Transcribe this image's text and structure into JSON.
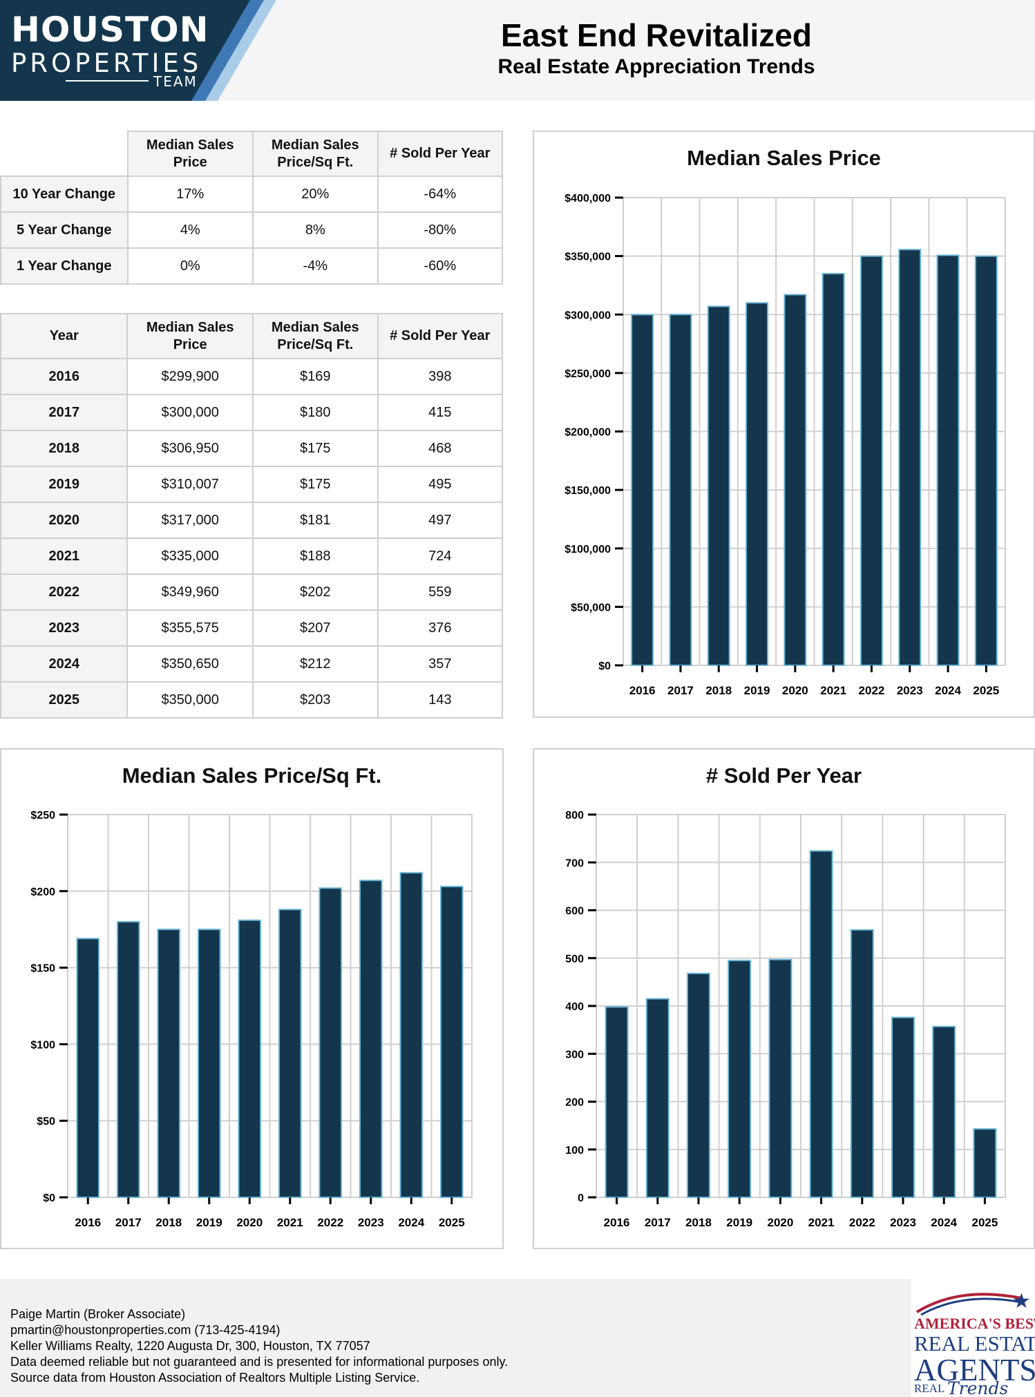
{
  "logo": {
    "line1": "HOUSTON",
    "line2": "PROPERTIES",
    "line3": "TEAM"
  },
  "header": {
    "title": "East End Revitalized",
    "subtitle": "Real Estate Appreciation Trends"
  },
  "change_table": {
    "headers": [
      "",
      "Median Sales Price",
      "Median Sales Price/Sq Ft.",
      "# Sold Per Year"
    ],
    "rows": [
      {
        "label": "10 Year Change",
        "price": "17%",
        "sqft": "20%",
        "sold": "-64%"
      },
      {
        "label": "5 Year Change",
        "price": "4%",
        "sqft": "8%",
        "sold": "-80%"
      },
      {
        "label": "1 Year Change",
        "price": "0%",
        "sqft": "-4%",
        "sold": "-60%"
      }
    ]
  },
  "year_table": {
    "headers": [
      "Year",
      "Median Sales Price",
      "Median Sales Price/Sq Ft.",
      "# Sold Per Year"
    ],
    "rows": [
      {
        "year": "2016",
        "price": "$299,900",
        "sqft": "$169",
        "sold": "398"
      },
      {
        "year": "2017",
        "price": "$300,000",
        "sqft": "$180",
        "sold": "415"
      },
      {
        "year": "2018",
        "price": "$306,950",
        "sqft": "$175",
        "sold": "468"
      },
      {
        "year": "2019",
        "price": "$310,007",
        "sqft": "$175",
        "sold": "495"
      },
      {
        "year": "2020",
        "price": "$317,000",
        "sqft": "$181",
        "sold": "497"
      },
      {
        "year": "2021",
        "price": "$335,000",
        "sqft": "$188",
        "sold": "724"
      },
      {
        "year": "2022",
        "price": "$349,960",
        "sqft": "$202",
        "sold": "559"
      },
      {
        "year": "2023",
        "price": "$355,575",
        "sqft": "$207",
        "sold": "376"
      },
      {
        "year": "2024",
        "price": "$350,650",
        "sqft": "$212",
        "sold": "357"
      },
      {
        "year": "2025",
        "price": "$350,000",
        "sqft": "$203",
        "sold": "143"
      }
    ]
  },
  "chart_data": [
    {
      "id": "price",
      "type": "bar",
      "title": "Median Sales Price",
      "categories": [
        "2016",
        "2017",
        "2018",
        "2019",
        "2020",
        "2021",
        "2022",
        "2023",
        "2024",
        "2025"
      ],
      "values": [
        299900,
        300000,
        306950,
        310007,
        317000,
        335000,
        349960,
        355575,
        350650,
        350000
      ],
      "ylim": [
        0,
        400000
      ],
      "yticks": [
        0,
        50000,
        100000,
        150000,
        200000,
        250000,
        300000,
        350000,
        400000
      ],
      "ytick_labels": [
        "$0",
        "$50,000",
        "$100,000",
        "$150,000",
        "$200,000",
        "$250,000",
        "$300,000",
        "$350,000",
        "$400,000"
      ],
      "xlabel": "",
      "ylabel": "",
      "grid": true,
      "legend": "none"
    },
    {
      "id": "sqft",
      "type": "bar",
      "title": "Median Sales Price/Sq Ft.",
      "categories": [
        "2016",
        "2017",
        "2018",
        "2019",
        "2020",
        "2021",
        "2022",
        "2023",
        "2024",
        "2025"
      ],
      "values": [
        169,
        180,
        175,
        175,
        181,
        188,
        202,
        207,
        212,
        203
      ],
      "ylim": [
        0,
        250
      ],
      "yticks": [
        0,
        50,
        100,
        150,
        200,
        250
      ],
      "ytick_labels": [
        "$0",
        "$50",
        "$100",
        "$150",
        "$200",
        "$250"
      ],
      "xlabel": "",
      "ylabel": "",
      "grid": true,
      "legend": "none"
    },
    {
      "id": "sold",
      "type": "bar",
      "title": "# Sold Per Year",
      "categories": [
        "2016",
        "2017",
        "2018",
        "2019",
        "2020",
        "2021",
        "2022",
        "2023",
        "2024",
        "2025"
      ],
      "values": [
        398,
        415,
        468,
        495,
        497,
        724,
        559,
        376,
        357,
        143
      ],
      "ylim": [
        0,
        800
      ],
      "yticks": [
        0,
        100,
        200,
        300,
        400,
        500,
        600,
        700,
        800
      ],
      "ytick_labels": [
        "0",
        "100",
        "200",
        "300",
        "400",
        "500",
        "600",
        "700",
        "800"
      ],
      "xlabel": "",
      "ylabel": "",
      "grid": true,
      "legend": "none"
    }
  ],
  "colors": {
    "bar_fill": "#14364c",
    "bar_edge": "#6bb6d8",
    "logo_bg": "#14364c",
    "logo_stripe_1": "#3f79b5",
    "logo_stripe_2": "#a9cce9",
    "grid": "#cfcfcf"
  },
  "footer": {
    "lines": [
      "Paige Martin (Broker Associate)",
      "pmartin@houstonproperties.com (713-425-4194)",
      "Keller Williams Realty, 1220 Augusta Dr, 300, Houston, TX 77057",
      "Data deemed reliable but not guaranteed and is presented for informational purposes only.",
      "Source data from Houston Association of Realtors Multiple Listing Service."
    ]
  },
  "badge": {
    "line1": "AMERICA'S BEST",
    "line2": "REAL ESTATE",
    "line3": "AGENTS",
    "line4": "REAL",
    "line5": "Trends",
    "icon": "star-icon"
  }
}
